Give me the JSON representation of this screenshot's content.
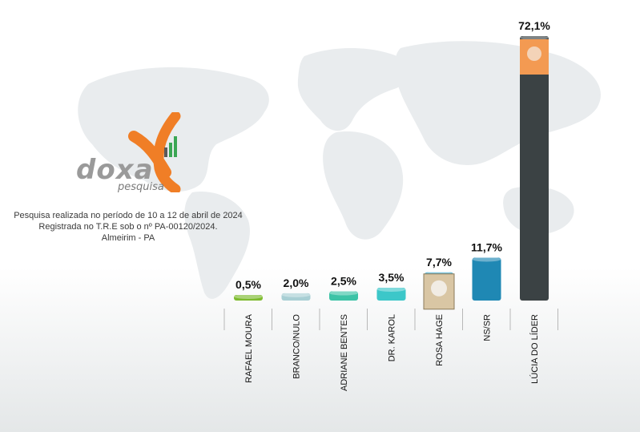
{
  "logo": {
    "brand": "doxa",
    "sub": "pesquisa"
  },
  "info": {
    "line1": "Pesquisa realizada no período de  10 a 12 de abril de 2024",
    "line2": "Registrada no T.R.E sob o nº PA-00120/2024.",
    "line3": "Almeirim - PA"
  },
  "chart_data": {
    "type": "bar",
    "categories": [
      "RAFAEL MOURA",
      "BRANCO/NULO",
      "ADRIANE BENTES",
      "DR. KAROL",
      "ROSA HAGE",
      "NS/SR",
      "LÚCIA DO LÍDER"
    ],
    "values": [
      0.5,
      2.0,
      2.5,
      3.5,
      7.7,
      11.7,
      72.1
    ],
    "value_labels": [
      "0,5%",
      "2,0%",
      "2,5%",
      "3,5%",
      "7,7%",
      "11,7%",
      "72,1%"
    ],
    "colors": [
      "#7dbb2e",
      "#a8cfd4",
      "#3cc3a6",
      "#3cc7c9",
      "#3aa6c9",
      "#1f88b4",
      "#3b4244"
    ],
    "ylim": [
      0,
      72.1
    ]
  }
}
